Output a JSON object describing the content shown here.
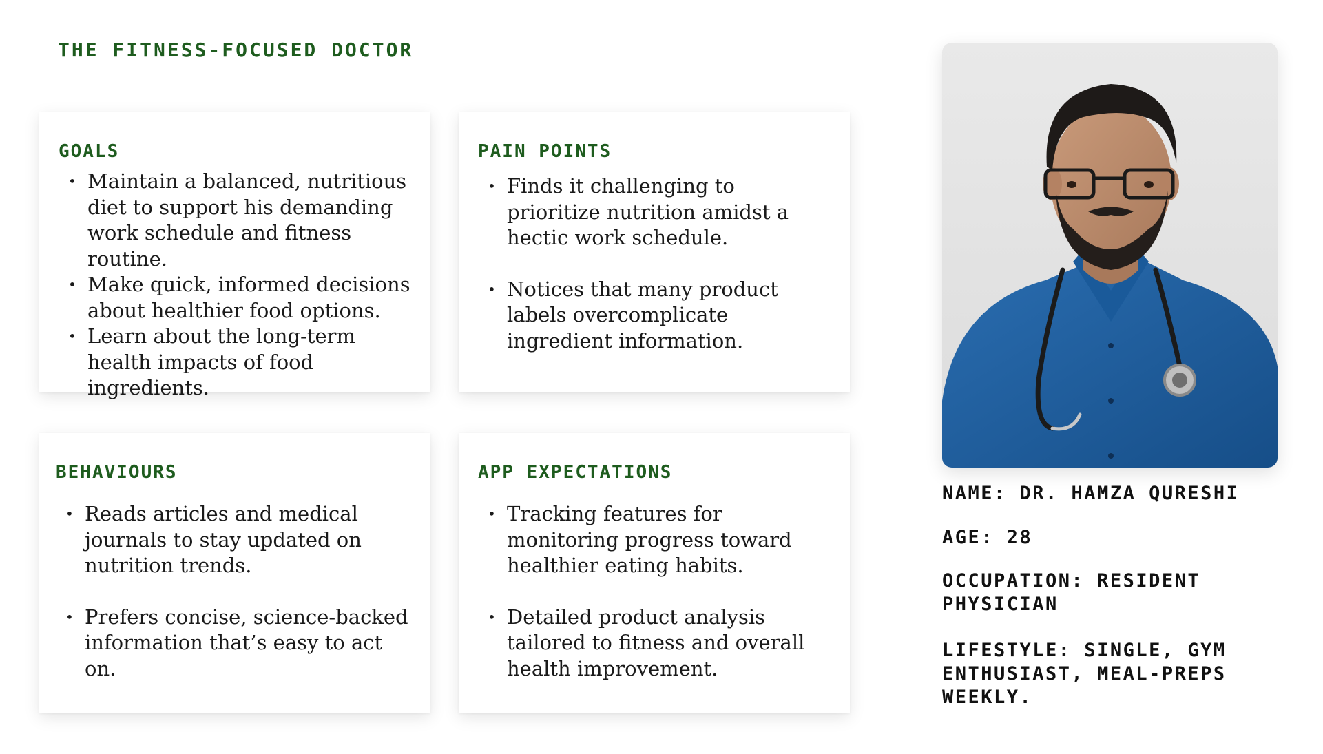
{
  "persona": {
    "title": "THE FITNESS-FOCUSED DOCTOR",
    "photo_alt": "portrait-photo",
    "goals": {
      "heading": "GOALS",
      "items": [
        "Maintain a balanced, nutritious diet to support his demanding work schedule and fitness routine.",
        "Make quick, informed decisions about healthier food options.",
        "Learn about the long-term health impacts of food ingredients."
      ]
    },
    "pain_points": {
      "heading": "PAIN POINTS",
      "items": [
        "Finds it challenging to prioritize nutrition amidst a hectic work schedule.",
        "Notices that many product labels overcomplicate ingredient information."
      ]
    },
    "behaviours": {
      "heading": "BEHAVIOURS",
      "items": [
        "Reads articles and medical journals to stay updated on nutrition trends.",
        "Prefers concise, science-backed information that’s easy to act on."
      ]
    },
    "app_expectations": {
      "heading": "APP EXPECTATIONS",
      "items": [
        "Tracking features for monitoring progress toward healthier eating habits.",
        "Detailed product analysis tailored to fitness and overall health improvement."
      ]
    },
    "info": {
      "name": "NAME: DR. HAMZA QURESHI",
      "age": "AGE: 28",
      "occupation": "OCCUPATION: RESIDENT PHYSICIAN",
      "lifestyle": "LIFESTYLE: SINGLE, GYM ENTHUSIAST, MEAL-PREPS WEEKLY."
    }
  },
  "colors": {
    "heading_green": "#1e5c1e",
    "shirt_blue": "#1f5f9e",
    "background": "#ffffff"
  }
}
